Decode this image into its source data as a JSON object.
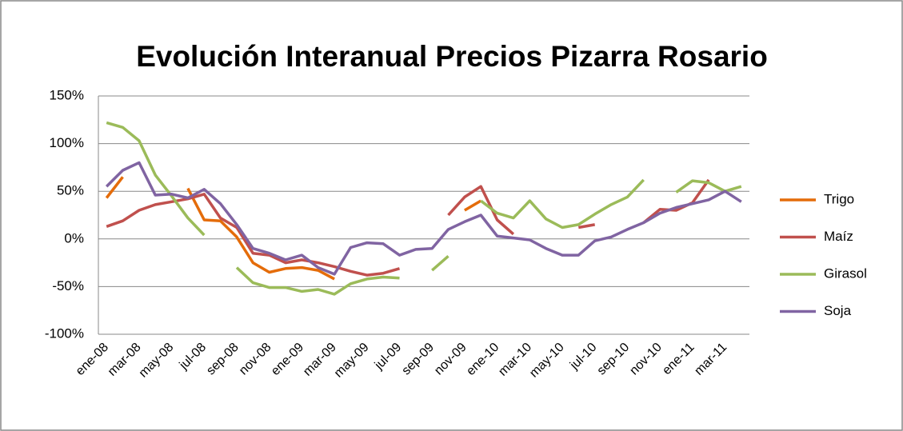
{
  "chart_data": {
    "type": "line",
    "title": "Evolución Interanual Precios Pizarra Rosario",
    "categories": [
      "ene-08",
      null,
      "mar-08",
      null,
      "may-08",
      null,
      "jul-08",
      null,
      "sep-08",
      null,
      "nov-08",
      null,
      "ene-09",
      null,
      "mar-09",
      null,
      "may-09",
      null,
      "jul-09",
      null,
      "sep-09",
      null,
      "nov-09",
      null,
      "ene-10",
      null,
      "mar-10",
      null,
      "may-10",
      null,
      "jul-10",
      null,
      "sep-10",
      null,
      "nov-10",
      null,
      "ene-11",
      null,
      "mar-11",
      null
    ],
    "series": [
      {
        "name": "Trigo",
        "color": "#e46c0a",
        "values": [
          43,
          65,
          null,
          null,
          null,
          53,
          20,
          19,
          2,
          -25,
          -35,
          -31,
          -30,
          -33,
          -42,
          null,
          null,
          null,
          null,
          null,
          null,
          null,
          30,
          40,
          null,
          null,
          null,
          null,
          null,
          null,
          null,
          null,
          null,
          null,
          null,
          null,
          null,
          null,
          null,
          null
        ]
      },
      {
        "name": "Maíz",
        "color": "#c0504d",
        "values": [
          13,
          19,
          30,
          36,
          39,
          42,
          47,
          22,
          12,
          -15,
          -17,
          -25,
          -22,
          -25,
          -29,
          -34,
          -38,
          -36,
          -31,
          null,
          null,
          25,
          44,
          55,
          20,
          5,
          null,
          null,
          null,
          12,
          15,
          null,
          null,
          17,
          31,
          30,
          38,
          62,
          null,
          null
        ]
      },
      {
        "name": "Girasol",
        "color": "#9bbb59",
        "values": [
          122,
          117,
          103,
          67,
          45,
          22,
          4,
          null,
          -30,
          -46,
          -51,
          -51,
          -55,
          -53,
          -58,
          -47,
          -42,
          -40,
          -41,
          null,
          -33,
          -18,
          null,
          40,
          27,
          22,
          40,
          21,
          12,
          15,
          26,
          36,
          44,
          62,
          null,
          49,
          61,
          59,
          50,
          55
        ]
      },
      {
        "name": "Soja",
        "color": "#8064a2",
        "values": [
          55,
          72,
          80,
          46,
          47,
          43,
          52,
          37,
          15,
          -10,
          -15,
          -22,
          -17,
          -30,
          -37,
          -9,
          -4,
          -5,
          -17,
          -11,
          -10,
          10,
          18,
          25,
          3,
          1,
          -1,
          -10,
          -17,
          -17,
          -2,
          2,
          10,
          17,
          27,
          33,
          37,
          41,
          50,
          39
        ]
      }
    ],
    "ylim": [
      -100,
      150
    ],
    "yticks": [
      {
        "value": -100,
        "label": "-100%"
      },
      {
        "value": -50,
        "label": "-50%"
      },
      {
        "value": 0,
        "label": "0%"
      },
      {
        "value": 50,
        "label": "50%"
      },
      {
        "value": 100,
        "label": "100%"
      },
      {
        "value": 150,
        "label": "150%"
      }
    ],
    "grid": true,
    "legend": "right"
  }
}
